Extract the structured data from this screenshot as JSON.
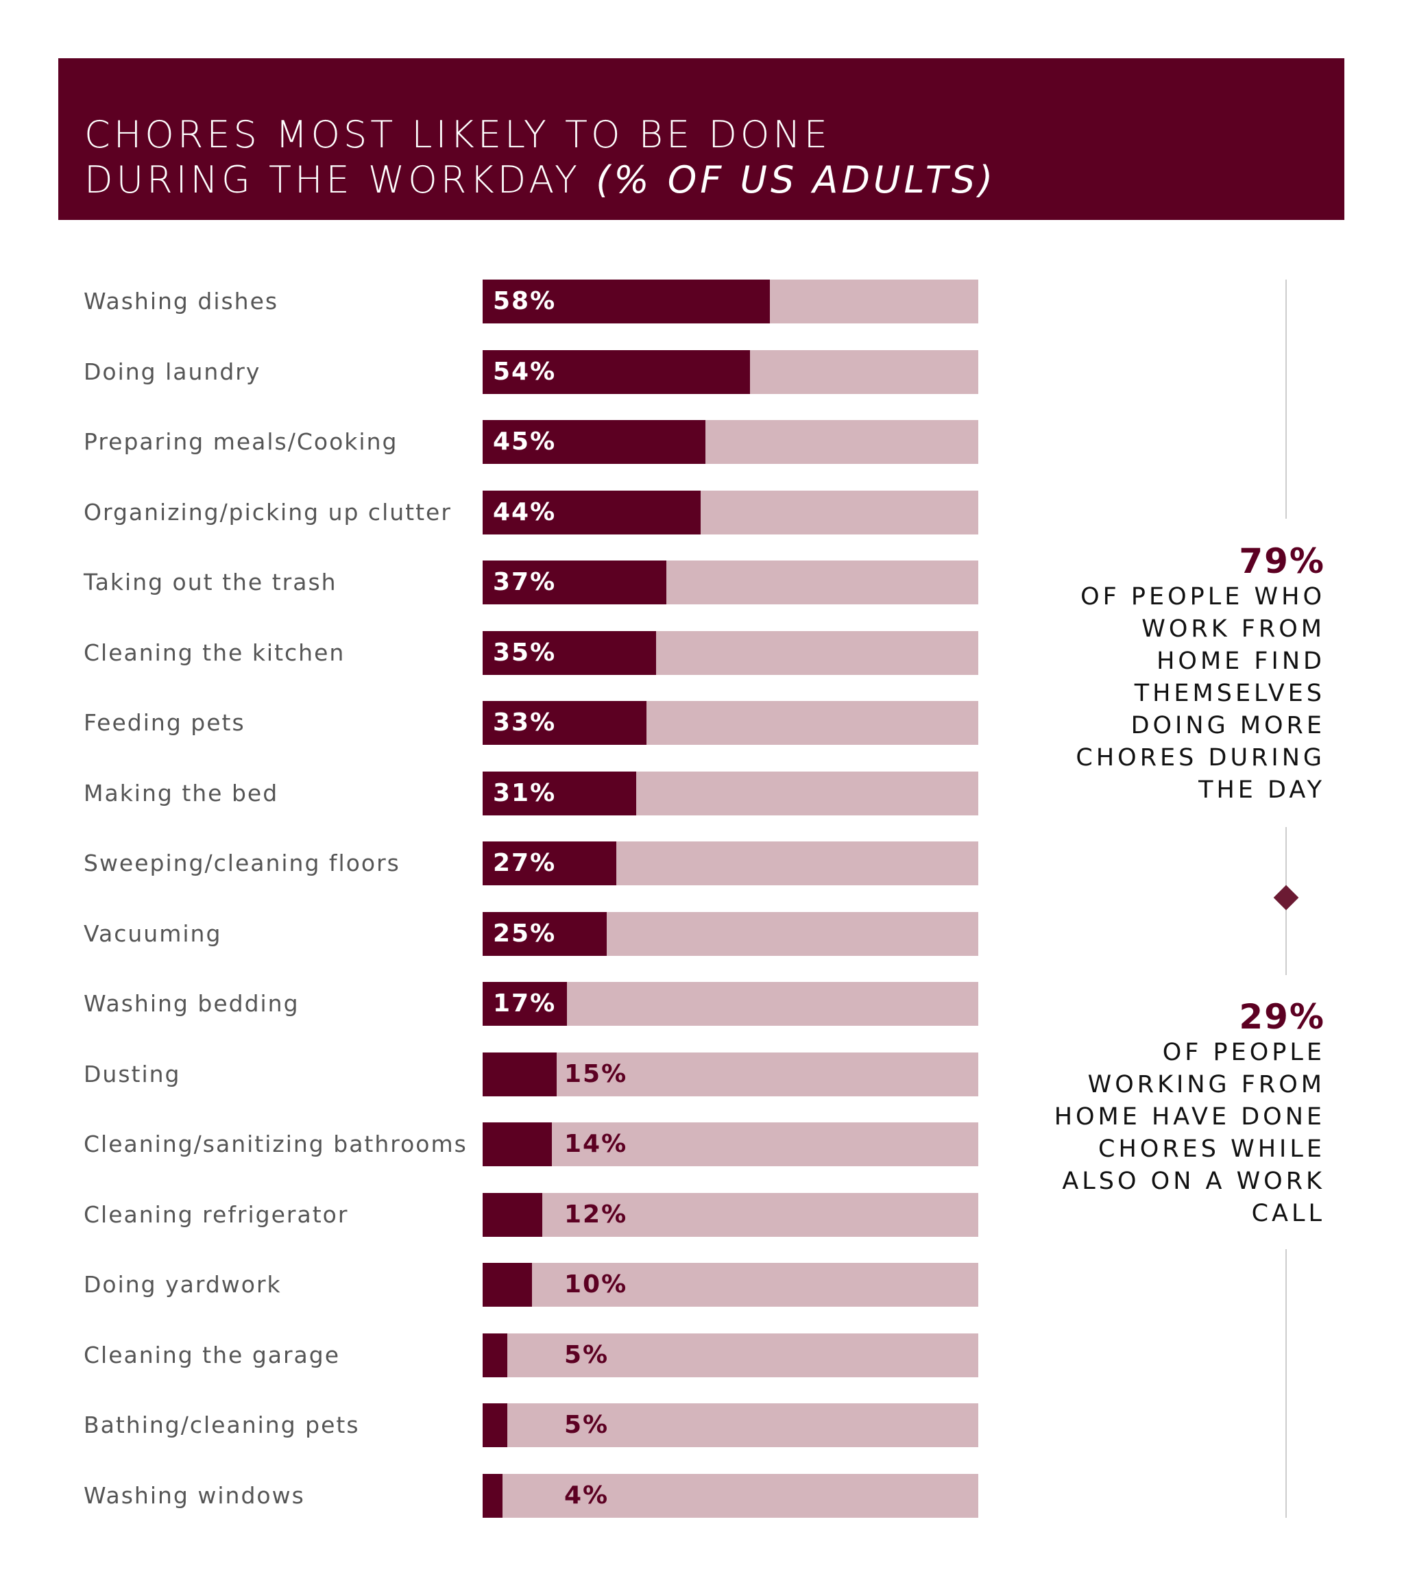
{
  "chart_data": {
    "type": "bar",
    "orientation": "horizontal",
    "title_line1": "CHORES MOST LIKELY TO BE DONE",
    "title_line2": "DURING THE WORKDAY",
    "title_suffix": "(% OF US ADULTS)",
    "xlim": [
      0,
      100
    ],
    "grid": false,
    "colors": {
      "fill": "#5c0022",
      "track": "#d4b5bc",
      "label": "#555555"
    },
    "categories": [
      "Washing dishes",
      "Doing laundry",
      "Preparing meals/Cooking",
      "Organizing/picking up clutter",
      "Taking out the trash",
      "Cleaning the kitchen",
      "Feeding pets",
      "Making the bed",
      "Sweeping/cleaning floors",
      "Vacuuming",
      "Washing bedding",
      "Dusting",
      "Cleaning/sanitizing bathrooms",
      "Cleaning refrigerator",
      "Doing yardwork",
      "Cleaning the garage",
      "Bathing/cleaning pets",
      "Washing windows"
    ],
    "values": [
      58,
      54,
      45,
      44,
      37,
      35,
      33,
      31,
      27,
      25,
      17,
      15,
      14,
      12,
      10,
      5,
      5,
      4
    ],
    "value_labels": [
      "58%",
      "54%",
      "45%",
      "44%",
      "37%",
      "35%",
      "33%",
      "31%",
      "27%",
      "25%",
      "17%",
      "15%",
      "14%",
      "12%",
      "10%",
      "5%",
      "5%",
      "4%"
    ]
  },
  "callouts": [
    {
      "number": "79%",
      "text": "OF PEOPLE WHO WORK FROM HOME FIND THEMSELVES DOING MORE CHORES DURING THE DAY"
    },
    {
      "number": "29%",
      "text": "OF PEOPLE WORKING FROM HOME HAVE DONE CHORES WHILE ALSO ON A WORK CALL"
    }
  ],
  "icons": {
    "divider": "diamond-icon"
  }
}
